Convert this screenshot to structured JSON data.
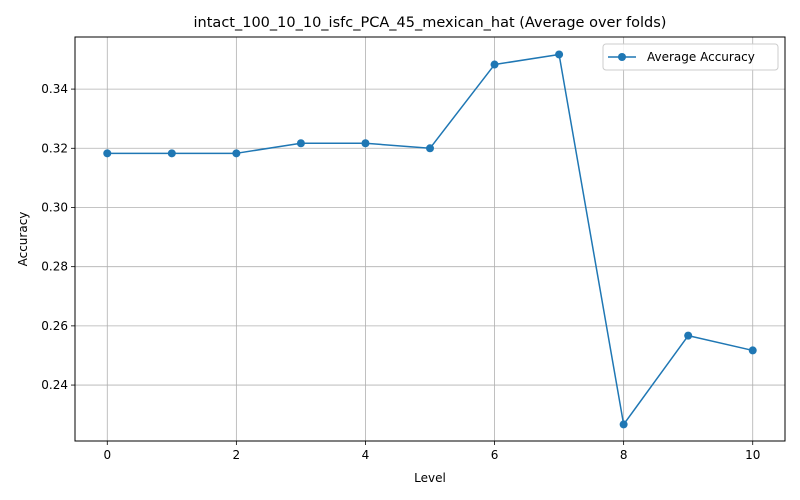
{
  "chart_data": {
    "type": "line",
    "title": "intact_100_10_10_isfc_PCA_45_mexican_hat (Average over folds)",
    "xlabel": "Level",
    "ylabel": "Accuracy",
    "x": [
      0,
      1,
      2,
      3,
      4,
      5,
      6,
      7,
      8,
      9,
      10
    ],
    "xlim": [
      -0.5,
      10.5
    ],
    "ylim": [
      0.2211,
      0.3576
    ],
    "xticks": [
      0,
      2,
      4,
      6,
      8,
      10
    ],
    "xtick_labels": [
      "0",
      "2",
      "4",
      "6",
      "8",
      "10"
    ],
    "yticks": [
      0.24,
      0.26,
      0.28,
      0.3,
      0.32,
      0.34
    ],
    "ytick_labels": [
      "0.24",
      "0.26",
      "0.28",
      "0.30",
      "0.32",
      "0.34"
    ],
    "grid": true,
    "legend_position": "top-right",
    "series": [
      {
        "name": "Average Accuracy",
        "color": "#1f77b4",
        "marker": "circle",
        "values": [
          0.3183,
          0.3183,
          0.3183,
          0.3217,
          0.3217,
          0.32,
          0.3483,
          0.3517,
          0.2267,
          0.2567,
          0.2517
        ]
      }
    ]
  }
}
